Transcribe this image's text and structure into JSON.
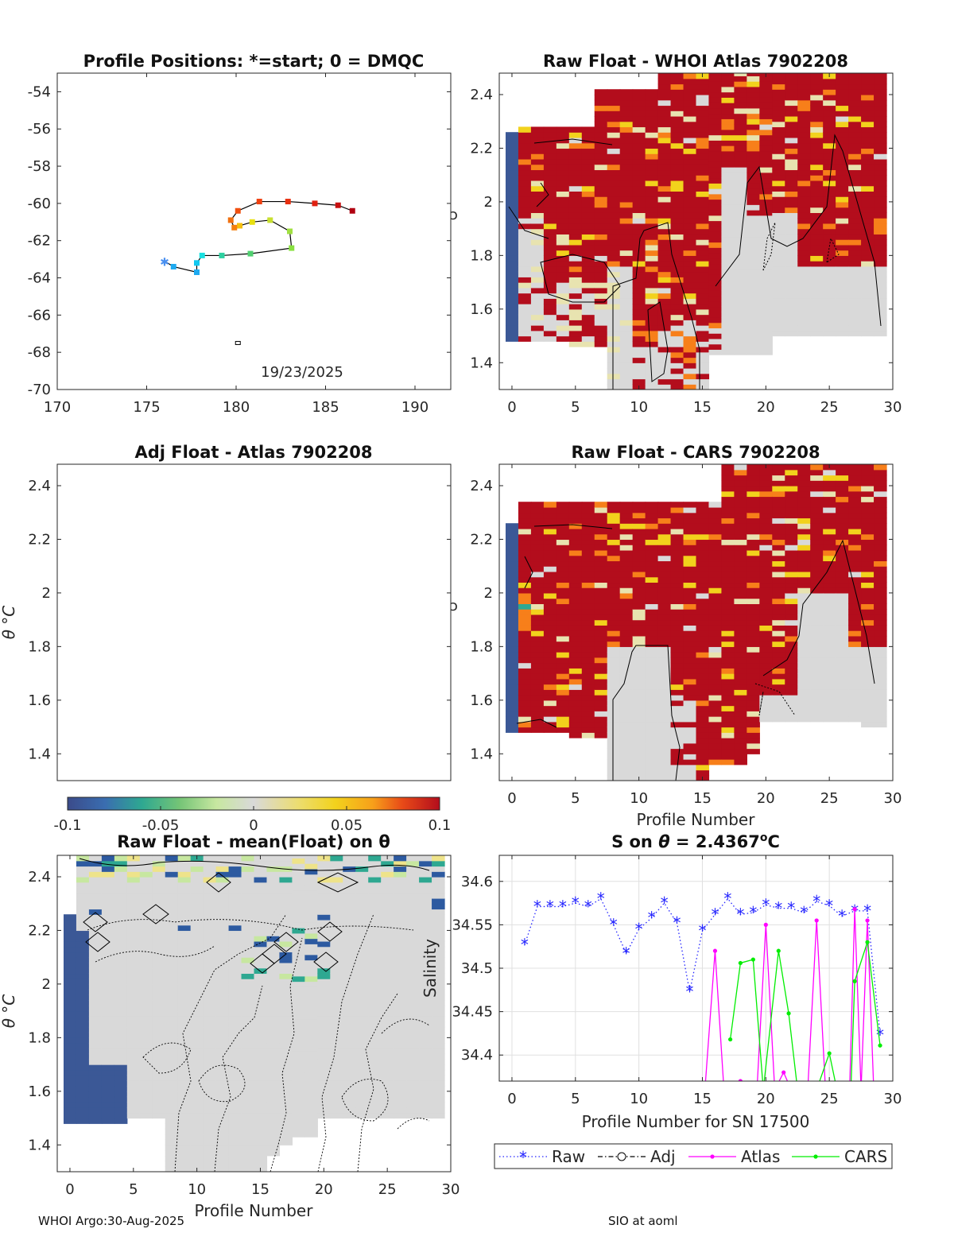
{
  "figure": {
    "footer_left": "WHOI Argo:30-Aug-2025",
    "footer_right": "SIO at aoml"
  },
  "colors": {
    "red": "#b30d1c",
    "orange": "#f77f1a",
    "yellow": "#f2d21c",
    "beige": "#e8e3b0",
    "gray": "#d9d9d9",
    "teal": "#2ea891",
    "green": "#74c476",
    "lightgreen": "#c7e7a0",
    "navy": "#3a5a96",
    "blue": "#2166ac",
    "magenta": "#ff00ff",
    "limegreen": "#00ee00",
    "rawblue": "#2424ff"
  },
  "chart_data": [
    {
      "id": "positions",
      "type": "scatter",
      "title": "Profile Positions: *=start; 0 = DMQC",
      "xlim": [
        170,
        192
      ],
      "ylim": [
        -70,
        -53
      ],
      "xticks": [
        170,
        175,
        180,
        185,
        190
      ],
      "yticks": [
        -70,
        -68,
        -66,
        -64,
        -62,
        -60,
        -58,
        -56,
        -54
      ],
      "annotation": "19/23/2025",
      "points": [
        {
          "x": 176.0,
          "y": -63.1,
          "c": "#4a90f0",
          "m": "start"
        },
        {
          "x": 176.5,
          "y": -63.4,
          "c": "#1eaaf0"
        },
        {
          "x": 177.8,
          "y": -63.7,
          "c": "#1eaaf0"
        },
        {
          "x": 177.8,
          "y": -63.2,
          "c": "#10c8f0"
        },
        {
          "x": 178.1,
          "y": -62.8,
          "c": "#1ae0e0"
        },
        {
          "x": 179.2,
          "y": -62.8,
          "c": "#2ed0a0"
        },
        {
          "x": 180.8,
          "y": -62.7,
          "c": "#50d070"
        },
        {
          "x": 183.1,
          "y": -62.4,
          "c": "#88e040"
        },
        {
          "x": 183.0,
          "y": -61.5,
          "c": "#a0e040"
        },
        {
          "x": 181.9,
          "y": -60.9,
          "c": "#c8e030"
        },
        {
          "x": 180.9,
          "y": -61.0,
          "c": "#e8e010"
        },
        {
          "x": 180.2,
          "y": -61.2,
          "c": "#f5c010"
        },
        {
          "x": 179.9,
          "y": -61.3,
          "c": "#f58010"
        },
        {
          "x": 179.7,
          "y": -60.9,
          "c": "#f07010"
        },
        {
          "x": 180.1,
          "y": -60.4,
          "c": "#f05010"
        },
        {
          "x": 181.3,
          "y": -59.9,
          "c": "#f04010"
        },
        {
          "x": 182.9,
          "y": -59.9,
          "c": "#e83010"
        },
        {
          "x": 184.4,
          "y": -60.0,
          "c": "#e02010"
        },
        {
          "x": 185.7,
          "y": -60.1,
          "c": "#c81010"
        },
        {
          "x": 186.5,
          "y": -60.4,
          "c": "#b00010"
        }
      ],
      "extra_marker": {
        "x": 180.1,
        "y": -67.5
      }
    },
    {
      "id": "raw_whoi",
      "type": "heatmap",
      "title": "Raw Float - WHOI Atlas  7902208",
      "xlim": [
        -1,
        30
      ],
      "ylim": [
        1.3,
        2.48
      ],
      "xticks": [
        0,
        5,
        10,
        15,
        20,
        25,
        30
      ],
      "yticks": [
        1.4,
        1.6,
        1.8,
        2,
        2.2,
        2.4
      ],
      "ylabel": "",
      "xlabel": ""
    },
    {
      "id": "adj_atlas",
      "type": "heatmap",
      "title": "Adj Float - Atlas  7902208",
      "xlim": [
        -1,
        30
      ],
      "ylim": [
        1.3,
        2.48
      ],
      "xticks": [],
      "yticks": [
        1.4,
        1.6,
        1.8,
        2,
        2.2,
        2.4
      ],
      "ylabel": "θ °C",
      "xlabel": ""
    },
    {
      "id": "raw_cars",
      "type": "heatmap",
      "title": "Raw Float - CARS  7902208",
      "xlim": [
        -1,
        30
      ],
      "ylim": [
        1.3,
        2.48
      ],
      "xticks": [
        0,
        5,
        10,
        15,
        20,
        25,
        30
      ],
      "yticks": [
        1.4,
        1.6,
        1.8,
        2,
        2.2,
        2.4
      ],
      "ylabel": "",
      "xlabel": "Profile Number"
    },
    {
      "id": "colorbar",
      "type": "colorbar",
      "range": [
        -0.1,
        0.1
      ],
      "tick_labels": [
        "-0.1",
        "-0.05",
        "0",
        "0.05",
        "0.1"
      ]
    },
    {
      "id": "raw_mean",
      "type": "heatmap",
      "title": "Raw Float - mean(Float) on θ",
      "xlim": [
        -1,
        30
      ],
      "ylim": [
        1.3,
        2.48
      ],
      "xticks": [
        0,
        5,
        10,
        15,
        20,
        25,
        30
      ],
      "yticks": [
        1.4,
        1.6,
        1.8,
        2,
        2.2,
        2.4
      ],
      "ylabel": "θ °C",
      "xlabel": "Profile Number"
    },
    {
      "id": "salinity",
      "type": "line",
      "title": "S on θ = 2.4367°C",
      "xlim": [
        -1,
        30
      ],
      "ylim": [
        34.37,
        34.63
      ],
      "xticks": [
        0,
        5,
        10,
        15,
        20,
        25,
        30
      ],
      "yticks": [
        34.4,
        34.45,
        34.5,
        34.55,
        34.6
      ],
      "ytick_labels": [
        "34.4",
        "34.45",
        "34.5",
        "34.55",
        "34.6"
      ],
      "xlabel": "Profile Number for SN 17500",
      "ylabel": "Salinity",
      "series": [
        {
          "name": "Raw",
          "color": "#2424ff",
          "x": [
            1,
            2,
            3,
            4,
            5,
            6,
            7,
            8,
            9,
            10,
            11,
            12,
            13,
            14,
            15,
            16,
            17,
            18,
            19,
            20,
            21,
            22,
            23,
            24,
            25,
            26,
            27,
            28,
            29
          ],
          "y": [
            34.527,
            34.571,
            34.571,
            34.571,
            34.575,
            34.571,
            34.58,
            34.55,
            34.517,
            34.545,
            34.558,
            34.575,
            34.552,
            34.473,
            34.543,
            34.562,
            34.58,
            34.562,
            34.564,
            34.573,
            34.569,
            34.569,
            34.564,
            34.577,
            34.572,
            34.56,
            34.566,
            34.566,
            34.423
          ]
        },
        {
          "name": "Adj",
          "color": "#000000",
          "x": [],
          "y": []
        },
        {
          "name": "Atlas",
          "color": "#ff00ff",
          "x": [
            15.2,
            16,
            16.7,
            17.4,
            18,
            18.6,
            19.3,
            20,
            20.7,
            21.4,
            22,
            22.7,
            23.3,
            24,
            24.7,
            25.3,
            26,
            26.6,
            27,
            27.5,
            28,
            28.5
          ],
          "y": [
            34.36,
            34.52,
            34.36,
            34.36,
            34.37,
            34.36,
            34.36,
            34.55,
            34.36,
            34.38,
            34.36,
            34.36,
            34.36,
            34.555,
            34.36,
            34.36,
            34.36,
            34.36,
            34.568,
            34.36,
            34.555,
            34.36
          ]
        },
        {
          "name": "CARS",
          "color": "#00ee00",
          "x": [
            17.2,
            18,
            19,
            19.8,
            21,
            21.8,
            22.5,
            23.2,
            24,
            25,
            25.6,
            26.2,
            26.7,
            27,
            28,
            29
          ],
          "y": [
            34.418,
            34.506,
            34.51,
            34.36,
            34.52,
            34.448,
            34.36,
            34.36,
            34.36,
            34.402,
            34.36,
            34.36,
            34.36,
            34.485,
            34.53,
            34.411
          ]
        }
      ],
      "legend": [
        "Raw",
        "Adj",
        "Atlas",
        "CARS"
      ]
    }
  ]
}
